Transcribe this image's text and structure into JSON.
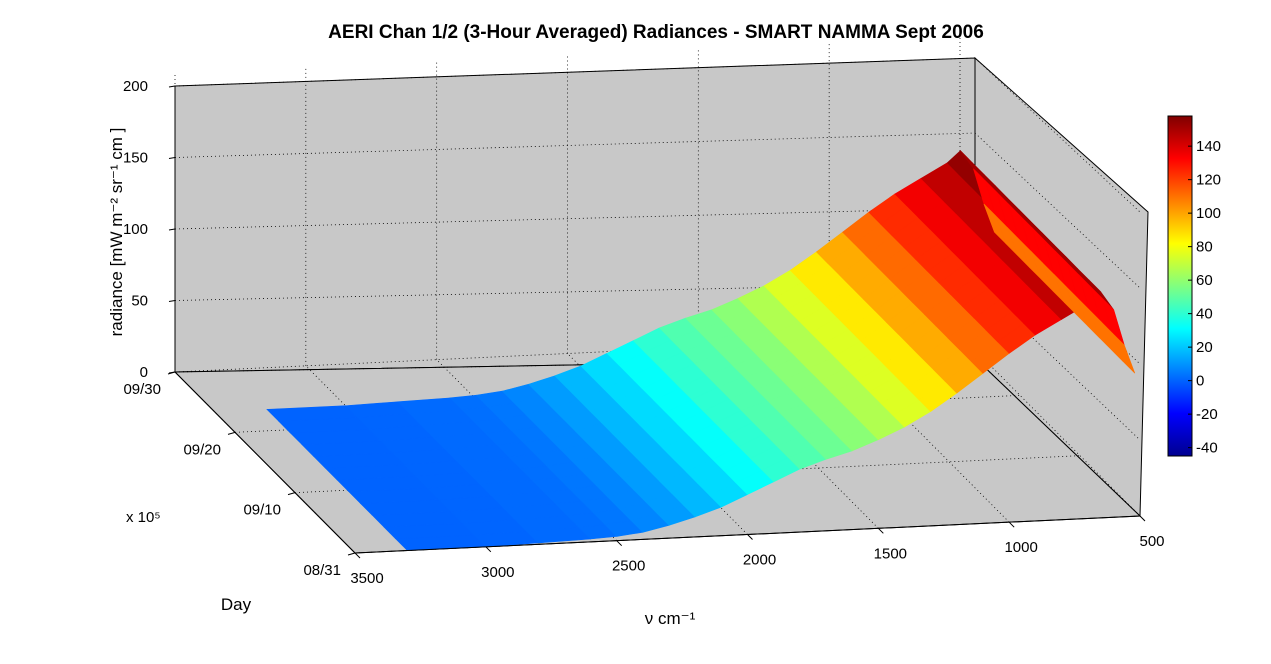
{
  "chart_data": {
    "type": "surface",
    "title": "AERI Chan 1/2 (3-Hour Averaged) Radiances - SMART NAMMA Sept 2006",
    "zlabel": "radiance [mW m⁻² sr⁻¹ cm  ]",
    "xlabel": "ν cm⁻¹",
    "ylabel": "Day",
    "y_multiplier": "x 10⁵",
    "x_ticks": [
      "3500",
      "3000",
      "2500",
      "2000",
      "1500",
      "1000",
      "500"
    ],
    "y_ticks": [
      "08/31",
      "09/10",
      "09/20",
      "09/30"
    ],
    "z_ticks": [
      "0",
      "50",
      "100",
      "150",
      "200"
    ],
    "colorbar_ticks": [
      "-40",
      "-20",
      "0",
      "20",
      "40",
      "60",
      "80",
      "100",
      "120",
      "140"
    ],
    "xlim": [
      3500,
      500
    ],
    "ylim": [
      "08/31",
      "09/30"
    ],
    "zlim": [
      0,
      200
    ],
    "clim": [
      -45,
      158
    ],
    "colormap": "jet",
    "grid": true,
    "background_color": "#c8c8c8",
    "mean_radiance_profile": {
      "wavenumber": [
        3300,
        3000,
        2800,
        2600,
        2500,
        2400,
        2300,
        2200,
        2100,
        2000,
        1900,
        1800,
        1700,
        1600,
        1500,
        1400,
        1300,
        1200,
        1100,
        1000,
        900,
        800,
        700,
        650,
        600,
        560,
        520
      ],
      "radiance": [
        0,
        0,
        1,
        2,
        3,
        5,
        9,
        14,
        20,
        28,
        36,
        44,
        50,
        55,
        62,
        70,
        80,
        92,
        105,
        118,
        130,
        140,
        150,
        158,
        145,
        120,
        100
      ]
    }
  }
}
